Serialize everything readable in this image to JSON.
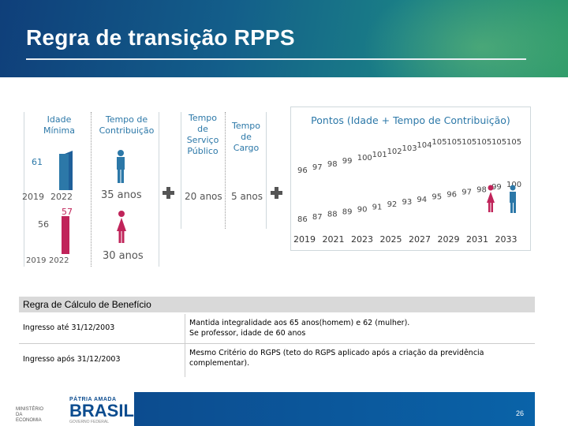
{
  "header": {
    "title": "Regra de transição RPPS"
  },
  "left": {
    "idade_head": "Idade\nMínima",
    "contrib_head": "Tempo de\nContribuição",
    "men_idade": "61",
    "year_2019": "2019",
    "year_2022": "2022",
    "women_idade_2019": "56",
    "women_idade_2022": "57",
    "year_2019b": "2019",
    "year_2022b": "2022",
    "men_contrib": "35 anos",
    "women_contrib": "30 anos"
  },
  "middle": {
    "servico_head": "Tempo\nde\nServiço\nPúblico",
    "cargo_head": "Tempo\nde\nCargo",
    "servico_val": "20 anos",
    "cargo_val": "5 anos"
  },
  "chart_data": {
    "type": "scatter",
    "title": "Pontos (Idade + Tempo de Contribuição)",
    "categories": [
      "2019",
      "2020",
      "2021",
      "2022",
      "2023",
      "2024",
      "2025",
      "2026",
      "2027",
      "2028",
      "2029",
      "2030",
      "2031",
      "2032",
      "2033"
    ],
    "x_tick_labels": [
      "2019",
      "2021",
      "2023",
      "2025",
      "2027",
      "2029",
      "2031",
      "2033"
    ],
    "series": [
      {
        "values": [
          96,
          97,
          98,
          99,
          100,
          101,
          102,
          103,
          104,
          105,
          105,
          105,
          105,
          105,
          105
        ]
      },
      {
        "values": [
          86,
          87,
          88,
          89,
          90,
          91,
          92,
          93,
          94,
          95,
          96,
          97,
          98,
          99,
          100
        ]
      }
    ],
    "colors": [
      "#2c78a8",
      "#c0245a"
    ]
  },
  "calc": {
    "title": "Regra de Cálculo de Benefício",
    "rows": [
      {
        "label": "Ingresso até 31/12/2003",
        "line1": "Mantida integralidade aos 65 anos(homem) e 62 (mulher).",
        "line2": "Se professor, idade de 60 anos"
      },
      {
        "label": "Ingresso após 31/12/2003",
        "line1": "Mesmo Critério do RGPS (teto do RGPS aplicado após a criação da previdência",
        "line2": "complementar)."
      }
    ]
  },
  "footer": {
    "page": "26",
    "ministerio": "MINISTÉRIO DA ECONOMIA",
    "patria": "PÁTRIA AMADA",
    "brasil": "BRASIL",
    "governo": "GOVERNO FEDERAL"
  }
}
